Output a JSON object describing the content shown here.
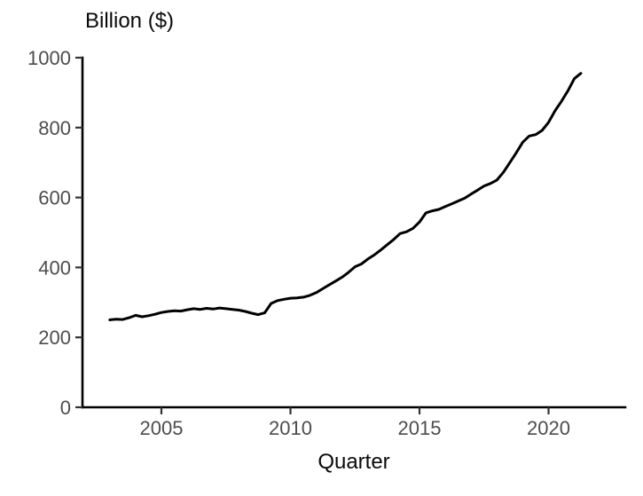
{
  "chart_data": {
    "type": "line",
    "title": "Billion ($)",
    "xlabel": "Quarter",
    "ylabel": "Billion ($)",
    "grid": false,
    "legend": "none",
    "xlim": [
      2003.0,
      2021.25
    ],
    "ylim": [
      0,
      1000
    ],
    "xticks": [
      2005,
      2010,
      2015,
      2020
    ],
    "yticks": [
      0,
      200,
      400,
      600,
      800,
      1000
    ],
    "colors": {
      "line": "#000000",
      "axis_line": "#000000",
      "tick_mark": "#333333",
      "tick_label": "#4d4d4d",
      "title_text": "#0a0a0a",
      "background": "#ffffff"
    },
    "x": [
      2003.0,
      2003.25,
      2003.5,
      2003.75,
      2004.0,
      2004.25,
      2004.5,
      2004.75,
      2005.0,
      2005.25,
      2005.5,
      2005.75,
      2006.0,
      2006.25,
      2006.5,
      2006.75,
      2007.0,
      2007.25,
      2007.5,
      2007.75,
      2008.0,
      2008.25,
      2008.5,
      2008.75,
      2009.0,
      2009.25,
      2009.5,
      2009.75,
      2010.0,
      2010.25,
      2010.5,
      2010.75,
      2011.0,
      2011.25,
      2011.5,
      2011.75,
      2012.0,
      2012.25,
      2012.5,
      2012.75,
      2013.0,
      2013.25,
      2013.5,
      2013.75,
      2014.0,
      2014.25,
      2014.5,
      2014.75,
      2015.0,
      2015.25,
      2015.5,
      2015.75,
      2016.0,
      2016.25,
      2016.5,
      2016.75,
      2017.0,
      2017.25,
      2017.5,
      2017.75,
      2018.0,
      2018.25,
      2018.5,
      2018.75,
      2019.0,
      2019.25,
      2019.5,
      2019.75,
      2020.0,
      2020.25,
      2020.5,
      2020.75,
      2021.0,
      2021.25
    ],
    "values": [
      250,
      252,
      251,
      256,
      263,
      259,
      262,
      266,
      271,
      274,
      276,
      275,
      279,
      282,
      280,
      283,
      281,
      284,
      282,
      280,
      278,
      274,
      269,
      265,
      270,
      297,
      305,
      309,
      312,
      313,
      315,
      320,
      328,
      339,
      350,
      361,
      372,
      386,
      402,
      410,
      424,
      436,
      450,
      465,
      480,
      497,
      502,
      512,
      530,
      556,
      562,
      566,
      574,
      582,
      590,
      598,
      610,
      621,
      633,
      640,
      650,
      672,
      700,
      728,
      758,
      776,
      780,
      792,
      815,
      848,
      875,
      905,
      940,
      955
    ]
  }
}
